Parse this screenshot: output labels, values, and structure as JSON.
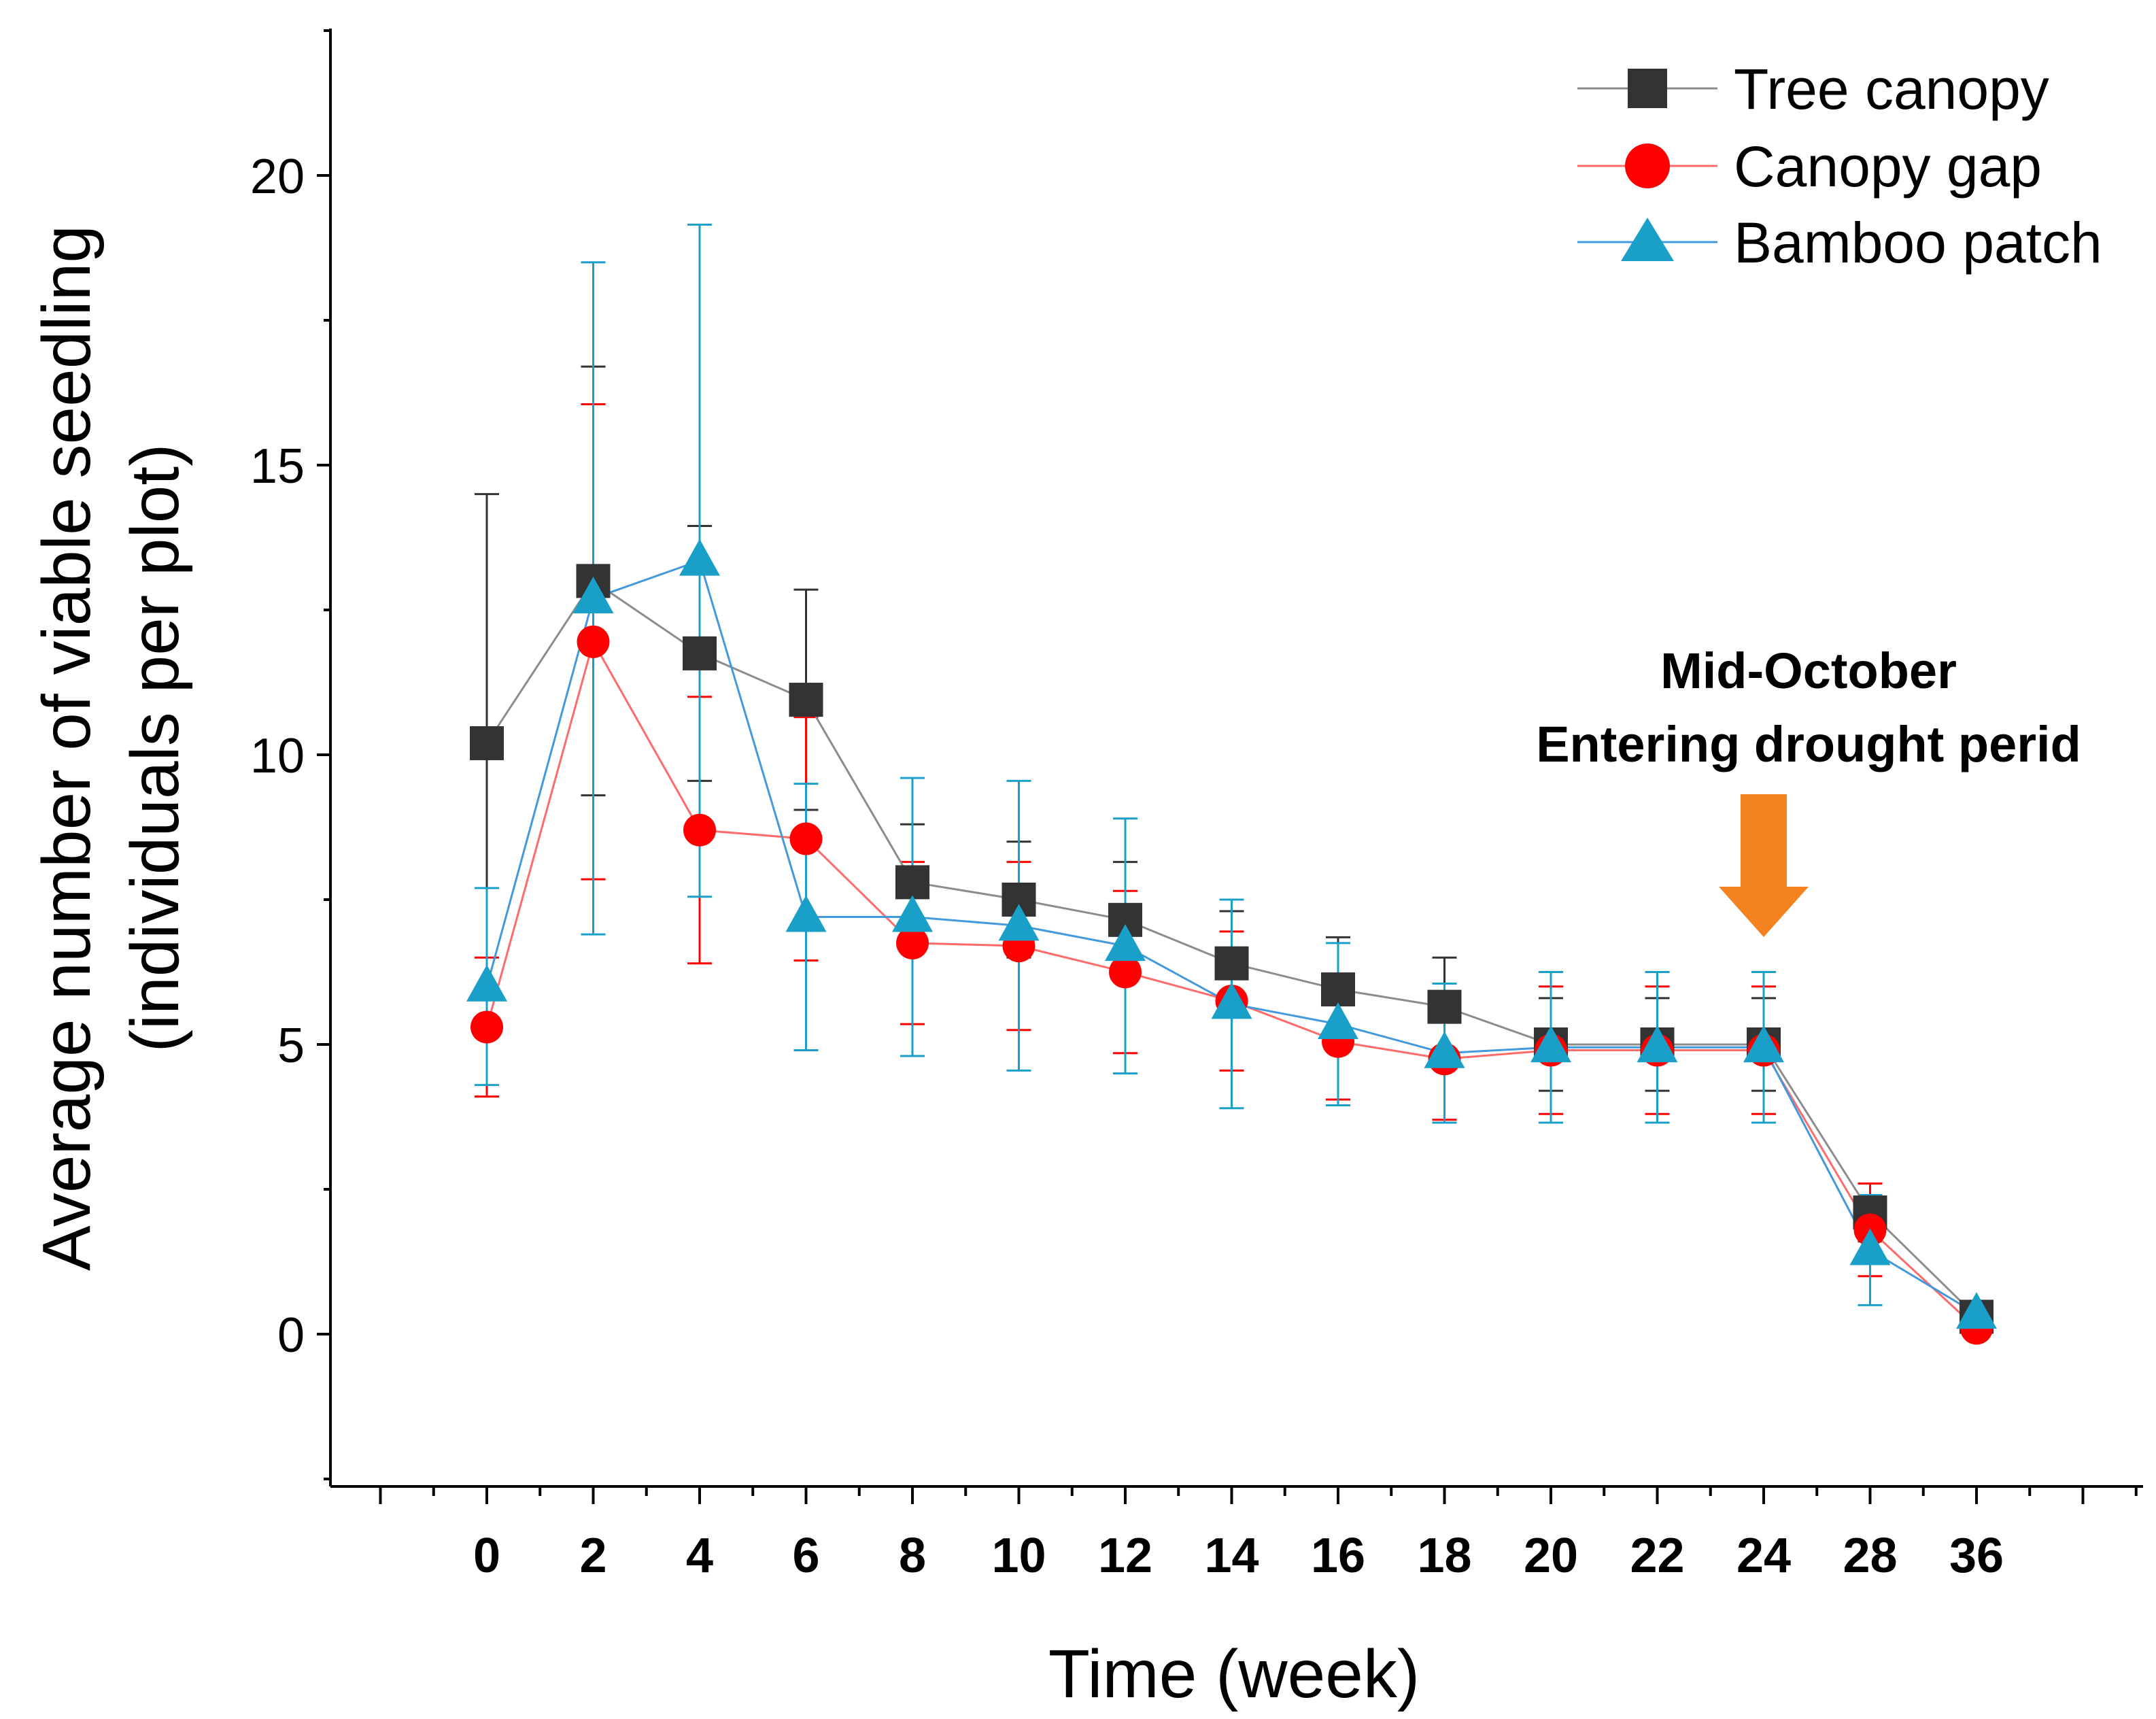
{
  "chart_data": {
    "type": "line",
    "xlabel": "Time (week)",
    "ylabel_line1": "Average number of viable seedling",
    "ylabel_line2": "(individuals per plot)",
    "categories": [
      "0",
      "2",
      "4",
      "6",
      "8",
      "10",
      "12",
      "14",
      "16",
      "18",
      "20",
      "22",
      "24",
      "28",
      "36"
    ],
    "y_ticks": [
      "0",
      "5",
      "10",
      "15",
      "20"
    ],
    "ylim": [
      -2.5,
      22.5
    ],
    "grid": false,
    "legend_position": "top-right",
    "series": [
      {
        "name": "Tree canopy",
        "color": "#333333",
        "line_color": "#8c8c8c",
        "marker": "square",
        "values": [
          10.2,
          13.0,
          11.75,
          10.95,
          7.8,
          7.5,
          7.15,
          6.4,
          5.95,
          5.65,
          5.0,
          5.0,
          5.0,
          2.1,
          0.3
        ],
        "error": [
          4.3,
          3.7,
          2.2,
          1.9,
          1.0,
          1.0,
          1.0,
          0.9,
          0.9,
          0.85,
          0.8,
          0.8,
          0.8,
          0.5,
          0.1
        ]
      },
      {
        "name": "Canopy gap",
        "color": "#ff0000",
        "line_color": "#ff6b6b",
        "marker": "circle",
        "values": [
          5.3,
          11.95,
          8.7,
          8.55,
          6.75,
          6.7,
          6.25,
          5.75,
          5.05,
          4.75,
          4.9,
          4.9,
          4.9,
          1.8,
          0.1
        ],
        "error": [
          1.2,
          4.1,
          2.3,
          2.1,
          1.4,
          1.45,
          1.4,
          1.2,
          1.0,
          1.05,
          1.1,
          1.1,
          1.1,
          0.8,
          0.05
        ]
      },
      {
        "name": "Bamboo patch",
        "color": "#1aa0c8",
        "line_color": "#4499dd",
        "marker": "triangle",
        "values": [
          6.0,
          12.7,
          13.35,
          7.2,
          7.2,
          7.05,
          6.7,
          5.7,
          5.35,
          4.85,
          4.95,
          4.95,
          4.95,
          1.45,
          0.35
        ],
        "error": [
          1.7,
          5.8,
          5.8,
          2.3,
          2.4,
          2.5,
          2.2,
          1.8,
          1.4,
          1.2,
          1.3,
          1.3,
          1.3,
          0.95,
          0.1
        ]
      }
    ],
    "annotation": {
      "line1": "Mid-October",
      "line2": "Entering drought perid",
      "arrow_x_category": "24",
      "arrow_color": "#f58220"
    }
  }
}
